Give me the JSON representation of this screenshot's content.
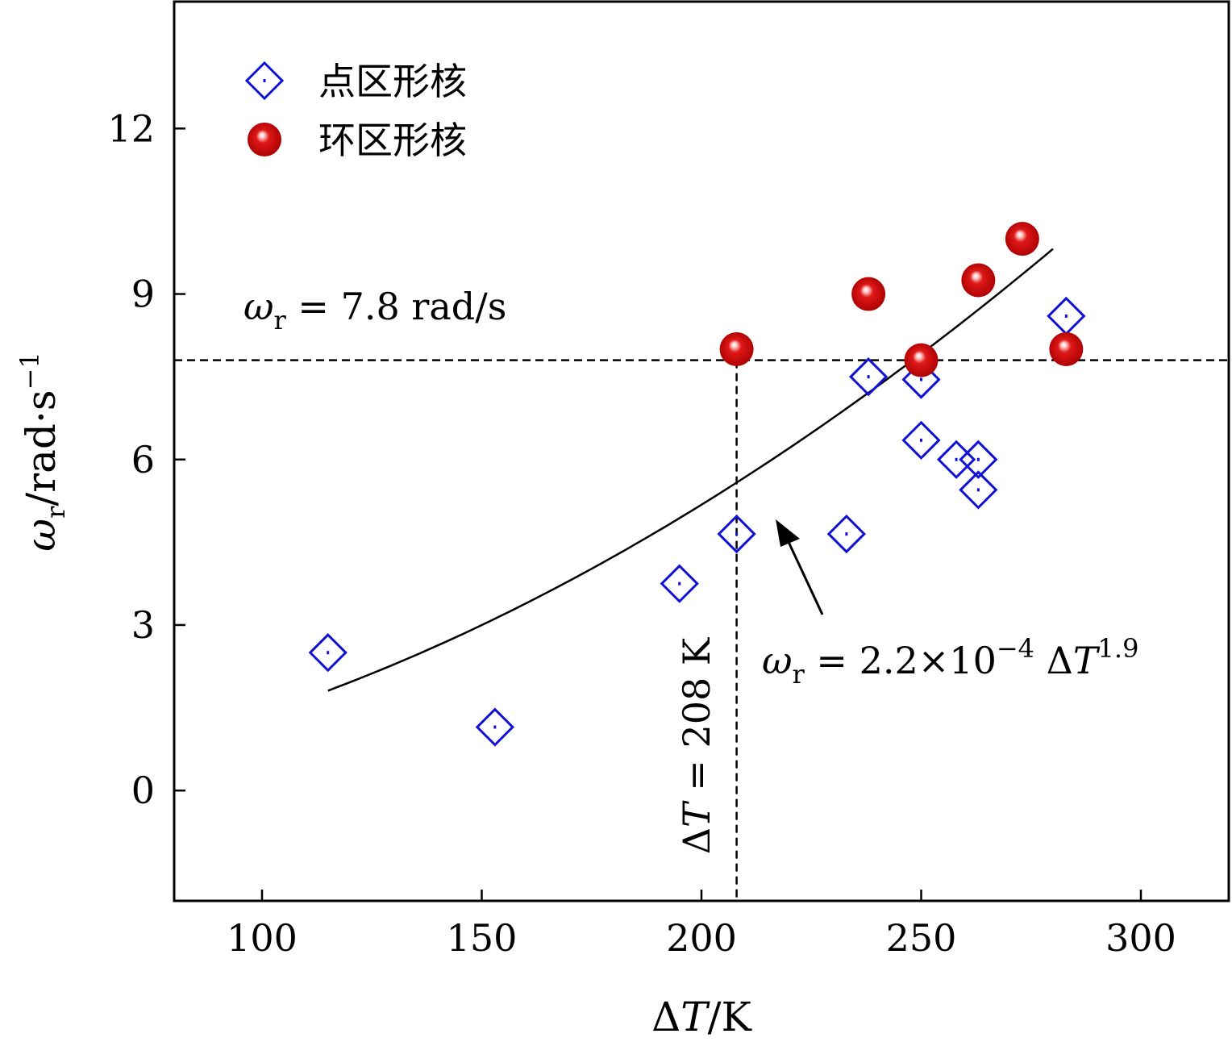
{
  "chart_data": {
    "type": "scatter",
    "xlabel": "ΔT/K",
    "ylabel": "ωr/rad·s−1",
    "xlim": [
      80,
      320
    ],
    "ylim": [
      -2,
      14.3
    ],
    "xticks": [
      100,
      150,
      200,
      250,
      300
    ],
    "yticks": [
      0,
      3,
      6,
      9,
      12
    ],
    "grid": false,
    "legend_position": "top-left",
    "colors": {
      "diamond": "#1010d8",
      "sphere": "#cc0000",
      "line": "#000000"
    },
    "series": [
      {
        "name": "点区形核",
        "marker": "diamond",
        "points": [
          [
            115,
            2.5
          ],
          [
            153,
            1.15
          ],
          [
            195,
            3.75
          ],
          [
            208,
            4.65
          ],
          [
            233,
            4.65
          ],
          [
            238,
            7.5
          ],
          [
            250,
            7.45
          ],
          [
            250,
            6.35
          ],
          [
            258,
            6.0
          ],
          [
            263,
            6.0
          ],
          [
            263,
            5.45
          ],
          [
            283,
            8.6
          ]
        ]
      },
      {
        "name": "环区形核",
        "marker": "sphere",
        "points": [
          [
            208,
            8.0
          ],
          [
            238,
            9.0
          ],
          [
            250,
            7.8
          ],
          [
            263,
            9.25
          ],
          [
            273,
            10.0
          ],
          [
            283,
            8.0
          ]
        ]
      }
    ],
    "fit": {
      "coef": 0.00022,
      "exponent": 1.9,
      "x_range": [
        115,
        280
      ],
      "label": "ωr = 2.2×10−4 ΔT1.9"
    },
    "reference_lines": {
      "horizontal": {
        "y": 7.8,
        "label": "ωr = 7.8 rad/s"
      },
      "vertical": {
        "x": 208,
        "label": "ΔT = 208 K"
      }
    }
  }
}
